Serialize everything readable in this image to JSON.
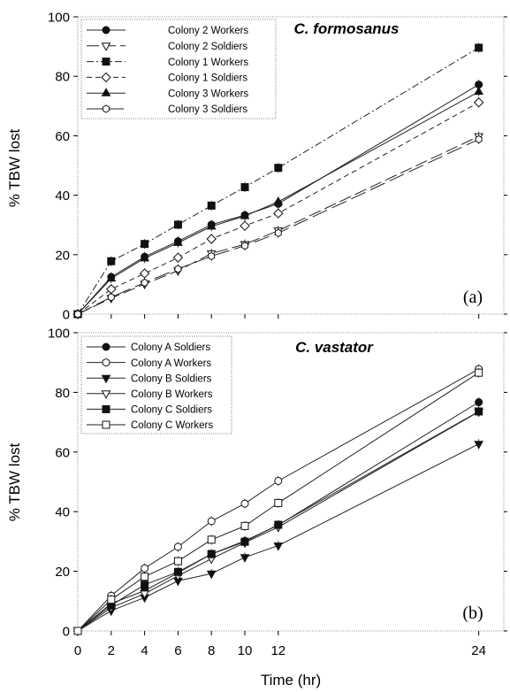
{
  "figure": {
    "xlabel": "Time (hr)",
    "ylabel": "% TBW lost"
  },
  "chart_data": [
    {
      "type": "line",
      "title": "C. formosanus",
      "panel_label": "(a)",
      "ylabel": "% TBW lost",
      "xlabel": "",
      "x_ticks": [
        0,
        2,
        4,
        6,
        8,
        10,
        12,
        24
      ],
      "x_tick_labels": [],
      "y_ticks": [
        0,
        20,
        40,
        60,
        80,
        100
      ],
      "xlim": [
        0,
        25.5
      ],
      "ylim": [
        0,
        100
      ],
      "legend_position": "top-left",
      "series": [
        {
          "name": "Colony 2 Workers",
          "marker": "circle-filled",
          "dash": "",
          "x": [
            0,
            2,
            4,
            6,
            8,
            10,
            12,
            24
          ],
          "y": [
            0,
            12.5,
            19.3,
            24.5,
            30.1,
            33.3,
            37.1,
            77.2
          ]
        },
        {
          "name": "Colony 2 Soldiers",
          "marker": "triangle-down-open",
          "dash": "14,5",
          "x": [
            0,
            2,
            4,
            6,
            8,
            10,
            12,
            24
          ],
          "y": [
            0,
            5.4,
            10.1,
            14.6,
            20.4,
            23.5,
            28.1,
            59.8
          ]
        },
        {
          "name": "Colony 1 Workers",
          "marker": "square-filled",
          "dash": "8,3,2,3",
          "x": [
            0,
            2,
            4,
            6,
            8,
            10,
            12,
            24
          ],
          "y": [
            0,
            17.8,
            23.6,
            30.1,
            36.5,
            42.7,
            49.2,
            89.6
          ]
        },
        {
          "name": "Colony 1 Soldiers",
          "marker": "diamond-open",
          "dash": "6,4",
          "x": [
            0,
            2,
            4,
            6,
            8,
            10,
            12,
            24
          ],
          "y": [
            0,
            8.4,
            13.7,
            19.0,
            25.3,
            29.7,
            33.9,
            71.2
          ]
        },
        {
          "name": "Colony 3 Workers",
          "marker": "triangle-up-filled",
          "dash": "",
          "x": [
            0,
            2,
            4,
            6,
            8,
            10,
            12,
            24
          ],
          "y": [
            0,
            12.0,
            18.8,
            24.0,
            29.5,
            33.0,
            37.8,
            74.8
          ]
        },
        {
          "name": "Colony 3 Soldiers",
          "marker": "hexagon-open",
          "dash": "18,6",
          "x": [
            0,
            2,
            4,
            6,
            8,
            10,
            12,
            24
          ],
          "y": [
            0,
            5.7,
            10.6,
            15.2,
            19.5,
            23.0,
            27.3,
            58.8
          ]
        }
      ]
    },
    {
      "type": "line",
      "title": "C. vastator",
      "panel_label": "(b)",
      "ylabel": "% TBW lost",
      "xlabel": "Time (hr)",
      "x_ticks": [
        0,
        2,
        4,
        6,
        8,
        10,
        12,
        24
      ],
      "x_tick_labels": [
        "0",
        "2",
        "4",
        "6",
        "8",
        "10",
        "12",
        "24"
      ],
      "y_ticks": [
        0,
        20,
        40,
        60,
        80,
        100
      ],
      "xlim": [
        0,
        25.5
      ],
      "ylim": [
        0,
        100
      ],
      "legend_position": "top-left",
      "series": [
        {
          "name": "Colony A Soldiers",
          "marker": "circle-filled",
          "dash": "",
          "x": [
            0,
            2,
            4,
            6,
            8,
            10,
            12,
            24
          ],
          "y": [
            0,
            9.2,
            13.5,
            19.5,
            25.8,
            30.2,
            35.5,
            76.7
          ]
        },
        {
          "name": "Colony A Workers",
          "marker": "circle-open",
          "dash": "",
          "x": [
            0,
            2,
            4,
            6,
            8,
            10,
            12,
            24
          ],
          "y": [
            0,
            11.8,
            21.0,
            28.2,
            36.8,
            42.7,
            50.3,
            87.8
          ]
        },
        {
          "name": "Colony B Soldiers",
          "marker": "triangle-down-filled",
          "dash": "",
          "x": [
            0,
            2,
            4,
            6,
            8,
            10,
            12,
            24
          ],
          "y": [
            0,
            6.8,
            11.2,
            16.8,
            19.2,
            24.7,
            28.6,
            62.7
          ]
        },
        {
          "name": "Colony B Workers",
          "marker": "triangle-down-open",
          "dash": "",
          "x": [
            0,
            2,
            4,
            6,
            8,
            10,
            12,
            24
          ],
          "y": [
            0,
            7.8,
            12.5,
            18.5,
            24.2,
            29.6,
            34.8,
            73.5
          ]
        },
        {
          "name": "Colony C Soldiers",
          "marker": "square-filled",
          "dash": "",
          "x": [
            0,
            2,
            4,
            6,
            8,
            10,
            12,
            24
          ],
          "y": [
            0,
            8.6,
            15.5,
            19.8,
            25.8,
            29.9,
            35.6,
            73.6
          ]
        },
        {
          "name": "Colony C Workers",
          "marker": "square-open",
          "dash": "",
          "x": [
            0,
            2,
            4,
            6,
            8,
            10,
            12,
            24
          ],
          "y": [
            0,
            10.5,
            18.2,
            23.4,
            30.6,
            35.2,
            42.9,
            86.6
          ]
        }
      ]
    }
  ]
}
